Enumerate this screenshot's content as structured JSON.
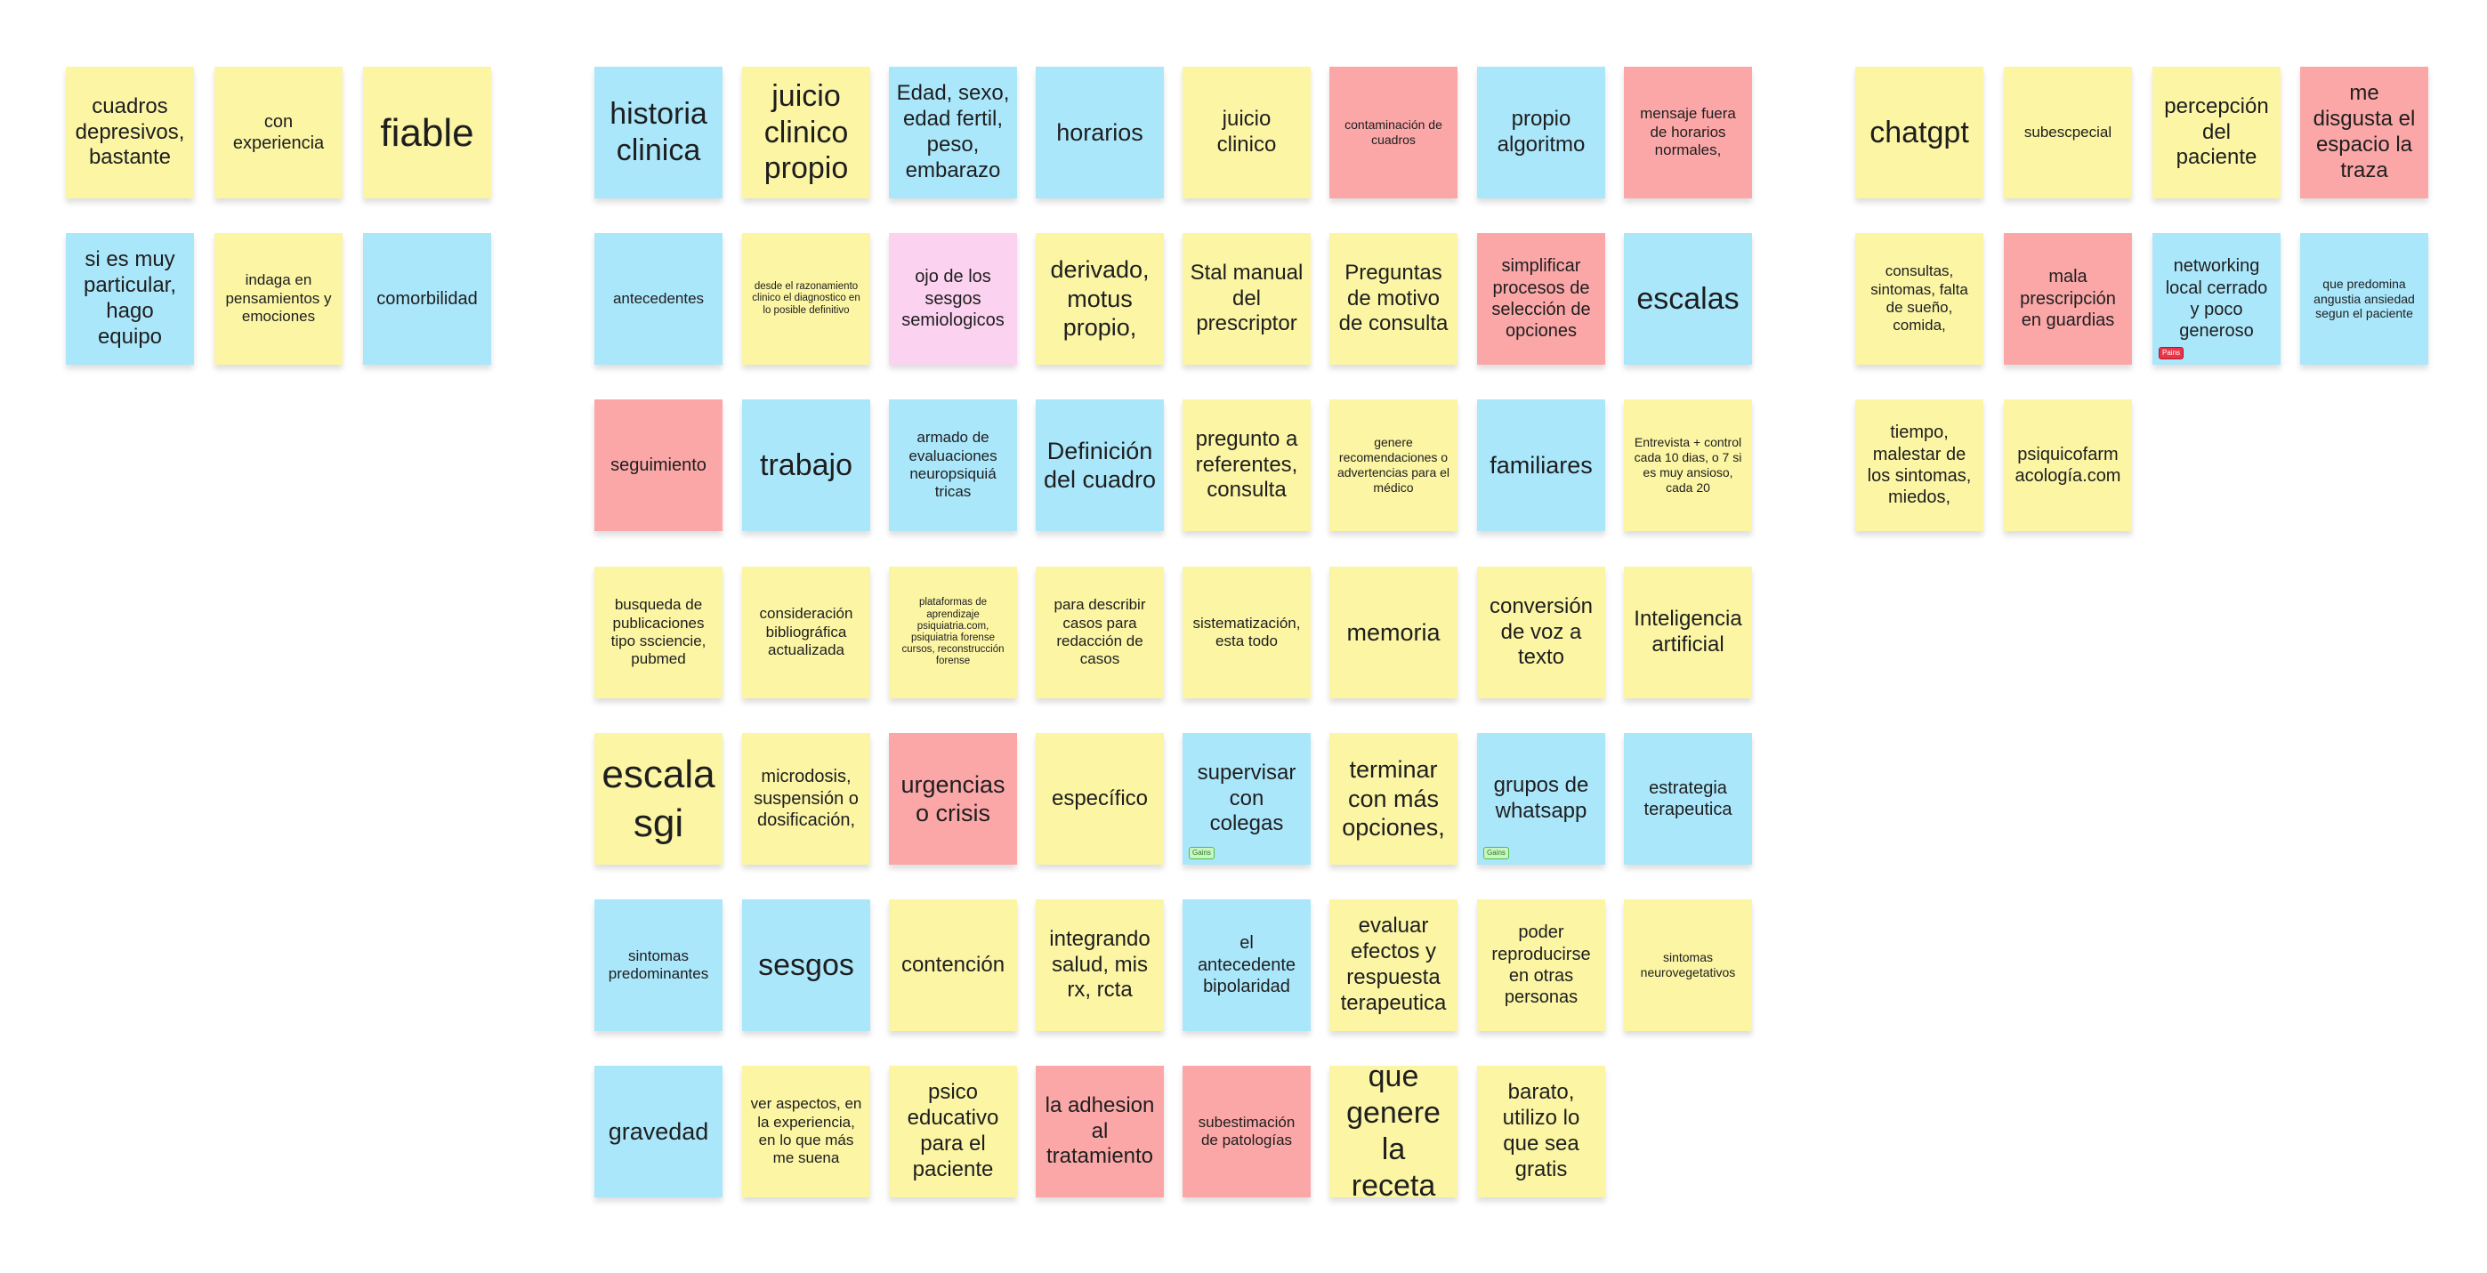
{
  "board": {
    "colors": {
      "yellow": "#fbf5a4",
      "blue": "#abe7fb",
      "red": "#fba7a8",
      "pink": "#fcd2f1",
      "tag_green": "#c9f5c2",
      "tag_red": "#e8354a"
    },
    "notes": [
      {
        "text": "cuadros depresivos, bastante",
        "color": "yellow"
      },
      {
        "text": "con experiencia",
        "color": "yellow"
      },
      {
        "text": "fiable",
        "color": "yellow"
      },
      {
        "text": "si es muy particular, hago equipo",
        "color": "blue"
      },
      {
        "text": "indaga en pensamientos y emociones",
        "color": "yellow"
      },
      {
        "text": "comorbilidad",
        "color": "blue"
      },
      {
        "text": "historia clinica",
        "color": "blue"
      },
      {
        "text": "juicio clinico propio",
        "color": "yellow"
      },
      {
        "text": "Edad, sexo, edad fertil, peso, embarazo",
        "color": "blue"
      },
      {
        "text": "horarios",
        "color": "blue"
      },
      {
        "text": "juicio clinico",
        "color": "yellow"
      },
      {
        "text": "contaminación de cuadros",
        "color": "red"
      },
      {
        "text": "propio algoritmo",
        "color": "blue"
      },
      {
        "text": "mensaje fuera de horarios normales,",
        "color": "red"
      },
      {
        "text": "antecedentes",
        "color": "blue"
      },
      {
        "text": "desde el razonamiento clinico el diagnostico en lo posible definitivo",
        "color": "yellow"
      },
      {
        "text": "ojo de los sesgos semiologicos",
        "color": "pink"
      },
      {
        "text": "derivado, motus propio,",
        "color": "yellow"
      },
      {
        "text": "Stal manual del prescriptor",
        "color": "yellow"
      },
      {
        "text": "Preguntas de motivo de consulta",
        "color": "yellow"
      },
      {
        "text": "simplificar procesos de selección de opciones",
        "color": "red"
      },
      {
        "text": "escalas",
        "color": "blue"
      },
      {
        "text": "seguimiento",
        "color": "red"
      },
      {
        "text": "trabajo",
        "color": "blue"
      },
      {
        "text": "armado de evaluaciones neuropsiquiá tricas",
        "color": "blue"
      },
      {
        "text": "Definición del cuadro",
        "color": "blue"
      },
      {
        "text": "pregunto a referentes, consulta",
        "color": "yellow"
      },
      {
        "text": "genere recomendaciones o advertencias para el médico",
        "color": "yellow"
      },
      {
        "text": "familiares",
        "color": "blue"
      },
      {
        "text": "Entrevista + control cada 10 dias, o 7 si es muy ansioso, cada 20",
        "color": "yellow"
      },
      {
        "text": "busqueda de publicaciones tipo ssciencie, pubmed",
        "color": "yellow"
      },
      {
        "text": "consideración bibliográfica actualizada",
        "color": "yellow"
      },
      {
        "text": "plataformas de aprendizaje psiquiatria.com, psiquiatria forense cursos, reconstrucción forense",
        "color": "yellow"
      },
      {
        "text": "para describir casos para redacción de casos",
        "color": "yellow"
      },
      {
        "text": "sistematización, esta todo",
        "color": "yellow"
      },
      {
        "text": "memoria",
        "color": "yellow"
      },
      {
        "text": "conversión de voz a texto",
        "color": "yellow"
      },
      {
        "text": "Inteligencia artificial",
        "color": "yellow"
      },
      {
        "text": "escala sgi",
        "color": "yellow"
      },
      {
        "text": "microdosis, suspensión o dosificación,",
        "color": "yellow"
      },
      {
        "text": "urgencias o crisis",
        "color": "red"
      },
      {
        "text": "específico",
        "color": "yellow"
      },
      {
        "text": "supervisar con colegas",
        "color": "blue",
        "tag": "Gains"
      },
      {
        "text": "terminar con más opciones,",
        "color": "yellow"
      },
      {
        "text": "grupos de whatsapp",
        "color": "blue",
        "tag": "Gains"
      },
      {
        "text": "estrategia terapeutica",
        "color": "blue"
      },
      {
        "text": "sintomas predominantes",
        "color": "blue"
      },
      {
        "text": "sesgos",
        "color": "blue"
      },
      {
        "text": "contención",
        "color": "yellow"
      },
      {
        "text": "integrando salud, mis rx, rcta",
        "color": "yellow"
      },
      {
        "text": "el antecedente bipolaridad",
        "color": "blue"
      },
      {
        "text": "evaluar efectos y respuesta terapeutica",
        "color": "yellow"
      },
      {
        "text": "poder reproducirse en otras personas",
        "color": "yellow"
      },
      {
        "text": "sintomas neurovegetativos",
        "color": "yellow"
      },
      {
        "text": "gravedad",
        "color": "blue"
      },
      {
        "text": "ver aspectos, en la experiencia, en lo que más me suena",
        "color": "yellow"
      },
      {
        "text": "psico educativo para el paciente",
        "color": "yellow"
      },
      {
        "text": "la adhesion al tratamiento",
        "color": "red"
      },
      {
        "text": "subestimación de patologías",
        "color": "red"
      },
      {
        "text": "que genere la receta",
        "color": "yellow"
      },
      {
        "text": "barato, utilizo lo que sea gratis",
        "color": "yellow"
      },
      {
        "text": "chatgpt",
        "color": "yellow"
      },
      {
        "text": "subescpecial",
        "color": "yellow"
      },
      {
        "text": "percepción del paciente",
        "color": "yellow"
      },
      {
        "text": "me disgusta el espacio la traza",
        "color": "red"
      },
      {
        "text": "consultas, sintomas, falta de sueño, comida,",
        "color": "yellow"
      },
      {
        "text": "mala prescripción en guardias",
        "color": "red"
      },
      {
        "text": "networking local cerrado y poco generoso",
        "color": "blue",
        "tag": "Pains"
      },
      {
        "text": "que predomina angustia ansiedad segun el paciente",
        "color": "blue"
      },
      {
        "text": "tiempo, malestar de los sintomas, miedos,",
        "color": "yellow"
      },
      {
        "text": "psiquicofarm acología.com",
        "color": "yellow"
      }
    ]
  }
}
